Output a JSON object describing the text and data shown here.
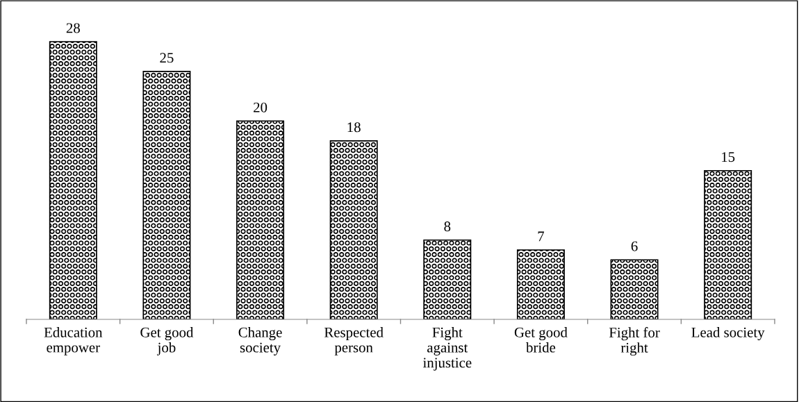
{
  "chart_data": {
    "type": "bar",
    "categories": [
      "Education\nempower",
      "Get good\njob",
      "Change\nsociety",
      "Respected\nperson",
      "Fight\nagainst\ninjustice",
      "Get good\nbride",
      "Fight for\nright",
      "Lead society"
    ],
    "values": [
      28,
      25,
      20,
      18,
      8,
      7,
      6,
      15
    ],
    "color": "#000000",
    "data_labels": true,
    "grid": false,
    "legend": false
  }
}
